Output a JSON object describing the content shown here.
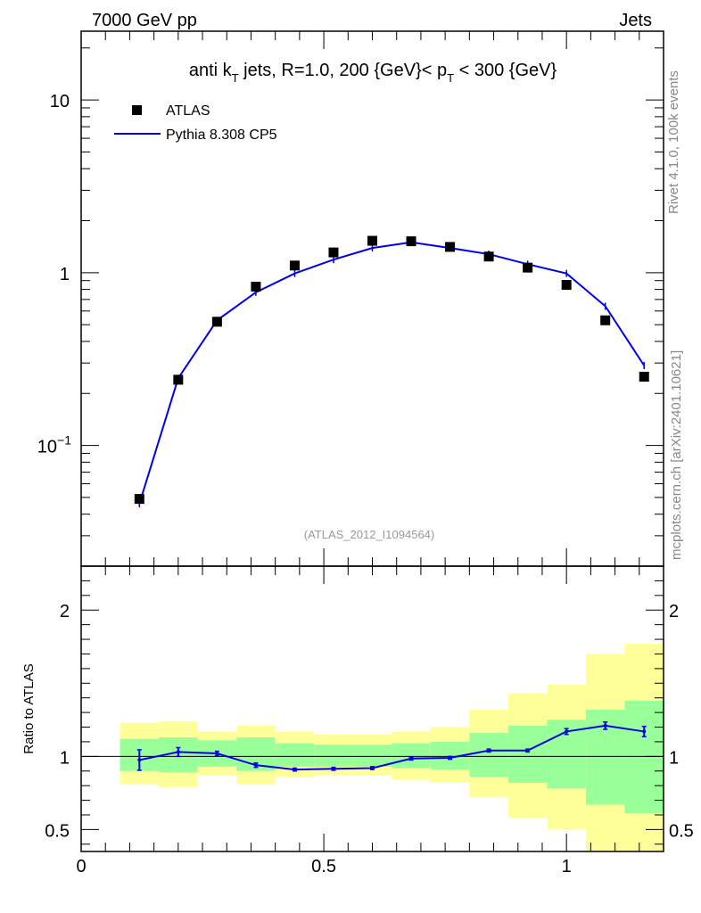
{
  "header": {
    "left": "7000 GeV pp",
    "right": "Jets"
  },
  "main": {
    "title_parts": {
      "prefix": "anti k",
      "sub1": "T",
      "mid": " jets, R=1.0,  200 {GeV}< p",
      "sub2": "T",
      "suffix": " < 300 {GeV}"
    },
    "ratio_ylabel": "Ratio to ATLAS",
    "watermark": "(ATLAS_2012_I1094564)"
  },
  "side_text": {
    "rivet": "Rivet 4.1.0,  100k events",
    "mcplots": "mcplots.cern.ch [arXiv:2401.10621]"
  },
  "colors": {
    "data_marker": "#000000",
    "mc_line": "#0000ee",
    "band_inner": "#99ff99",
    "band_outer": "#ffff99"
  },
  "chart_data": [
    {
      "type": "scatter",
      "panel": "main",
      "yscale": "log",
      "title": "anti kT jets, R=1.0, 200 {GeV}< pT < 300 {GeV}",
      "xlim": [
        0,
        1.2
      ],
      "ylim": [
        0.02,
        25
      ],
      "yticks": [
        {
          "label_base": "10",
          "label_exp": "",
          "value": 10
        },
        {
          "label_base": "1",
          "label_exp": "",
          "value": 1
        },
        {
          "label_base": "10",
          "label_exp": "−1",
          "value": 0.1
        }
      ],
      "legend": [
        "ATLAS",
        "Pythia 8.308 CP5"
      ],
      "legend_position": "top-left",
      "series": [
        {
          "name": "ATLAS",
          "style": "markers",
          "x": [
            0.12,
            0.2,
            0.28,
            0.36,
            0.44,
            0.52,
            0.6,
            0.68,
            0.76,
            0.84,
            0.92,
            1.0,
            1.08,
            1.16
          ],
          "y": [
            0.049,
            0.24,
            0.52,
            0.83,
            1.1,
            1.31,
            1.53,
            1.52,
            1.41,
            1.24,
            1.07,
            0.85,
            0.53,
            0.25
          ]
        },
        {
          "name": "Pythia 8.308 CP5",
          "style": "line",
          "x": [
            0.12,
            0.2,
            0.28,
            0.36,
            0.44,
            0.52,
            0.6,
            0.68,
            0.76,
            0.84,
            0.92,
            1.0,
            1.08,
            1.16
          ],
          "y": [
            0.046,
            0.245,
            0.53,
            0.77,
            0.99,
            1.19,
            1.39,
            1.5,
            1.39,
            1.28,
            1.12,
            0.99,
            0.64,
            0.29
          ]
        }
      ]
    },
    {
      "type": "line",
      "panel": "ratio",
      "xlim": [
        0,
        1.2
      ],
      "ylim": [
        0.35,
        2.3
      ],
      "xticks": [
        {
          "label": "0",
          "value": 0
        },
        {
          "label": "0.5",
          "value": 0.5
        },
        {
          "label": "1",
          "value": 1
        }
      ],
      "yticks": [
        {
          "label": "2",
          "value": 2
        },
        {
          "label": "1",
          "value": 1
        },
        {
          "label": "0.5",
          "value": 0.5
        }
      ],
      "ylabel": "Ratio to ATLAS",
      "reference_line": 1,
      "bands": {
        "edges": [
          0.08,
          0.16,
          0.24,
          0.32,
          0.4,
          0.48,
          0.56,
          0.64,
          0.72,
          0.8,
          0.88,
          0.96,
          1.04,
          1.12,
          1.2
        ],
        "inner_low": [
          0.9,
          0.89,
          0.93,
          0.9,
          0.93,
          0.93,
          0.93,
          0.92,
          0.91,
          0.86,
          0.82,
          0.78,
          0.67,
          0.61
        ],
        "inner_high": [
          1.12,
          1.13,
          1.11,
          1.13,
          1.09,
          1.08,
          1.08,
          1.09,
          1.1,
          1.16,
          1.21,
          1.25,
          1.32,
          1.38
        ],
        "outer_low": [
          0.81,
          0.79,
          0.87,
          0.81,
          0.86,
          0.87,
          0.87,
          0.84,
          0.82,
          0.72,
          0.58,
          0.5,
          0.3,
          0.3
        ],
        "outer_high": [
          1.23,
          1.24,
          1.17,
          1.21,
          1.17,
          1.15,
          1.15,
          1.17,
          1.2,
          1.32,
          1.43,
          1.49,
          1.7,
          1.77
        ]
      },
      "series": [
        {
          "name": "Pythia 8.308 CP5 / ATLAS",
          "x": [
            0.12,
            0.2,
            0.28,
            0.36,
            0.44,
            0.52,
            0.6,
            0.68,
            0.76,
            0.84,
            0.92,
            1.0,
            1.08,
            1.16
          ],
          "y": [
            0.975,
            1.03,
            1.02,
            0.94,
            0.91,
            0.915,
            0.92,
            0.985,
            0.99,
            1.04,
            1.04,
            1.17,
            1.21,
            1.17
          ],
          "yerr": [
            0.07,
            0.03,
            0.015,
            0.015,
            0.01,
            0.01,
            0.01,
            0.01,
            0.01,
            0.01,
            0.01,
            0.02,
            0.025,
            0.035
          ]
        }
      ]
    }
  ]
}
